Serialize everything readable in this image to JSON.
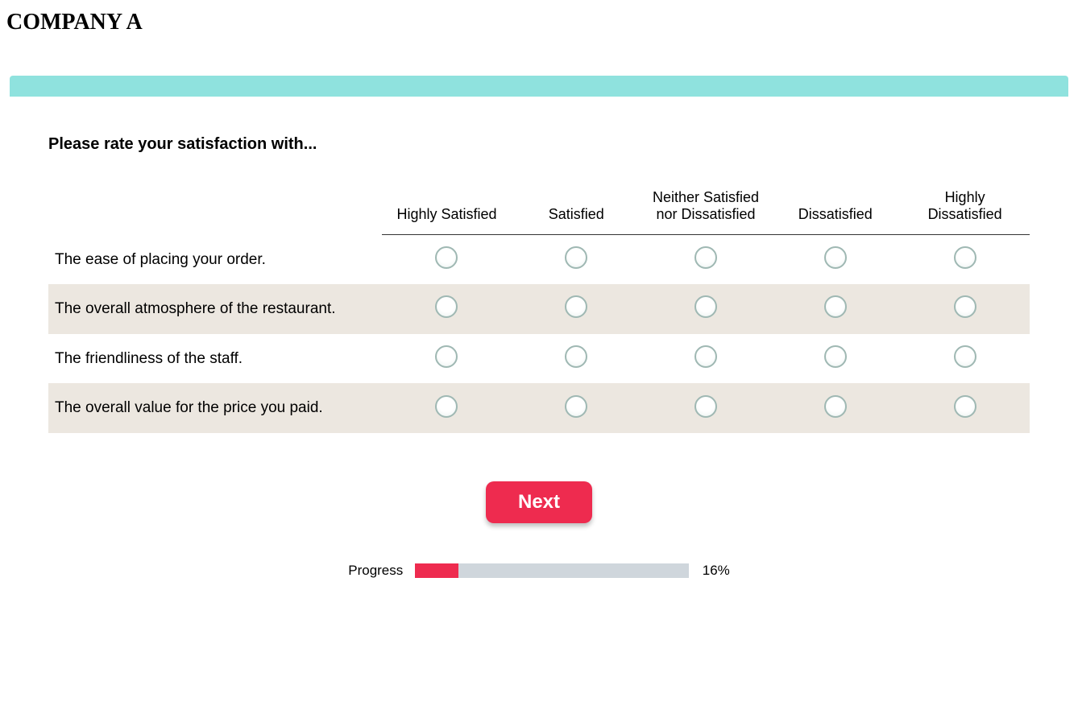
{
  "page_title": "COMPANY A",
  "colors": {
    "header_bar": "#8fe2de",
    "accent": "#ee2b4f",
    "alt_row_bg": "#ece7e0",
    "progress_track": "#cfd6dc",
    "radio_border": "#9fb8b3"
  },
  "survey": {
    "prompt": "Please rate your satisfaction with...",
    "columns": [
      "Highly Satisfied",
      "Satisfied",
      "Neither Satisfied nor Dissatisfied",
      "Dissatisfied",
      "Highly Dissatisfied"
    ],
    "rows": [
      "The ease of placing your order.",
      "The overall atmosphere of the restaurant.",
      "The friendliness of the staff.",
      "The overall value for the price you paid."
    ]
  },
  "next_button_label": "Next",
  "progress": {
    "label": "Progress",
    "percent": 16,
    "percent_text": "16%"
  }
}
